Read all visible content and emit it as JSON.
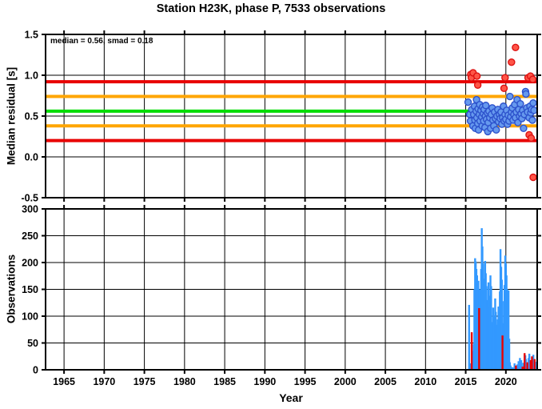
{
  "header": {
    "title": "Station H23K, phase P, 7533 observations"
  },
  "station": {
    "code": "H23K",
    "phase": "P",
    "observation_count": 7533
  },
  "colors": {
    "background": "#ffffff",
    "frame": "#000000",
    "median_line": "#00dd00",
    "smad_line": "#ffa500",
    "smad2_line": "#e80000",
    "inlier_fill": "#6699ee",
    "inlier_edge": "#2d52cc",
    "outlier_fill": "#ff5547",
    "outlier_edge": "#dd1212",
    "bar_blue": "#3399ff",
    "bar_red": "#e80000"
  },
  "chart_data": [
    {
      "type": "scatter",
      "name": "median-residual-panel",
      "title": "Station H23K, phase P, 7533 observations",
      "xlabel": "Year",
      "ylabel": "Median residual [s]",
      "annotation": "median = 0.56, smad = 0.18",
      "stats": {
        "median": 0.56,
        "smad": 0.18
      },
      "xlim": [
        1962.7,
        2023.9
      ],
      "ylim": [
        -0.5,
        1.5
      ],
      "xticks": [
        1965,
        1970,
        1975,
        1980,
        1985,
        1990,
        1995,
        2000,
        2005,
        2010,
        2015,
        2020
      ],
      "yticks": [
        -0.5,
        0.0,
        0.5,
        1.0,
        1.5
      ],
      "grid": true,
      "legend": "none",
      "hlines": [
        {
          "name": "median-minus-2smad-line",
          "y": 0.2,
          "color": "#e80000"
        },
        {
          "name": "median-plus-2smad-line",
          "y": 0.92,
          "color": "#e80000"
        },
        {
          "name": "median-minus-smad-line",
          "y": 0.38,
          "color": "#ffa500"
        },
        {
          "name": "median-plus-smad-line",
          "y": 0.74,
          "color": "#ffa500"
        },
        {
          "name": "median-line",
          "y": 0.56,
          "color": "#00dd00"
        }
      ],
      "series": [
        {
          "name": "residual-inliers",
          "marker": "circle",
          "fill": "#6699ee",
          "edge": "#2d52cc",
          "points": [
            [
              2015.3,
              0.67
            ],
            [
              2015.5,
              0.52
            ],
            [
              2015.6,
              0.44
            ],
            [
              2015.75,
              0.58
            ],
            [
              2015.9,
              0.38
            ],
            [
              2016.0,
              0.52
            ],
            [
              2016.1,
              0.62
            ],
            [
              2016.15,
              0.45
            ],
            [
              2016.2,
              0.35
            ],
            [
              2016.3,
              0.56
            ],
            [
              2016.35,
              0.7
            ],
            [
              2016.4,
              0.48
            ],
            [
              2016.5,
              0.41
            ],
            [
              2016.55,
              0.59
            ],
            [
              2016.6,
              0.33
            ],
            [
              2016.7,
              0.52
            ],
            [
              2016.75,
              0.64
            ],
            [
              2016.8,
              0.44
            ],
            [
              2016.9,
              0.57
            ],
            [
              2017.0,
              0.49
            ],
            [
              2017.05,
              0.38
            ],
            [
              2017.1,
              0.61
            ],
            [
              2017.2,
              0.53
            ],
            [
              2017.25,
              0.44
            ],
            [
              2017.3,
              0.58
            ],
            [
              2017.4,
              0.36
            ],
            [
              2017.45,
              0.5
            ],
            [
              2017.5,
              0.63
            ],
            [
              2017.6,
              0.46
            ],
            [
              2017.7,
              0.54
            ],
            [
              2017.75,
              0.31
            ],
            [
              2017.8,
              0.42
            ],
            [
              2017.9,
              0.56
            ],
            [
              2018.0,
              0.48
            ],
            [
              2018.1,
              0.35
            ],
            [
              2018.2,
              0.52
            ],
            [
              2018.3,
              0.6
            ],
            [
              2018.4,
              0.45
            ],
            [
              2018.5,
              0.38
            ],
            [
              2018.6,
              0.55
            ],
            [
              2018.7,
              0.47
            ],
            [
              2018.8,
              0.33
            ],
            [
              2018.9,
              0.5
            ],
            [
              2019.0,
              0.58
            ],
            [
              2019.1,
              0.43
            ],
            [
              2019.2,
              0.52
            ],
            [
              2019.3,
              0.47
            ],
            [
              2019.4,
              0.55
            ],
            [
              2019.5,
              0.4
            ],
            [
              2019.6,
              0.48
            ],
            [
              2019.7,
              0.62
            ],
            [
              2019.8,
              0.44
            ],
            [
              2019.9,
              0.52
            ],
            [
              2020.0,
              0.46
            ],
            [
              2020.1,
              0.57
            ],
            [
              2020.2,
              0.4
            ],
            [
              2020.3,
              0.51
            ],
            [
              2020.4,
              0.44
            ],
            [
              2020.5,
              0.74
            ],
            [
              2020.6,
              0.49
            ],
            [
              2020.7,
              0.55
            ],
            [
              2020.8,
              0.6
            ],
            [
              2020.9,
              0.45
            ],
            [
              2021.0,
              0.52
            ],
            [
              2021.1,
              0.64
            ],
            [
              2021.2,
              0.48
            ],
            [
              2021.3,
              0.55
            ],
            [
              2021.4,
              0.7
            ],
            [
              2021.5,
              0.42
            ],
            [
              2021.6,
              0.58
            ],
            [
              2021.7,
              0.5
            ],
            [
              2021.8,
              0.65
            ],
            [
              2021.9,
              0.53
            ],
            [
              2022.0,
              0.47
            ],
            [
              2022.1,
              0.57
            ],
            [
              2022.2,
              0.35
            ],
            [
              2022.3,
              0.52
            ],
            [
              2022.45,
              0.8
            ],
            [
              2022.5,
              0.77
            ],
            [
              2022.6,
              0.6
            ],
            [
              2022.7,
              0.55
            ],
            [
              2022.9,
              0.48
            ],
            [
              2023.0,
              0.62
            ],
            [
              2023.1,
              0.54
            ],
            [
              2023.2,
              0.58
            ],
            [
              2023.3,
              0.45
            ],
            [
              2023.4,
              0.66
            ],
            [
              2023.5,
              0.57
            ]
          ]
        },
        {
          "name": "residual-outliers",
          "marker": "circle",
          "fill": "#ff5547",
          "edge": "#dd1212",
          "points": [
            [
              2015.63,
              1.01
            ],
            [
              2015.7,
              0.97
            ],
            [
              2015.92,
              1.03
            ],
            [
              2016.4,
              0.99
            ],
            [
              2016.5,
              0.88
            ],
            [
              2019.77,
              0.84
            ],
            [
              2019.9,
              0.97
            ],
            [
              2020.7,
              1.16
            ],
            [
              2021.2,
              1.34
            ],
            [
              2022.76,
              0.97
            ],
            [
              2023.06,
              0.99
            ],
            [
              2023.35,
              0.95
            ],
            [
              2022.9,
              0.27
            ],
            [
              2023.15,
              0.23
            ],
            [
              2023.4,
              -0.25
            ]
          ]
        }
      ]
    },
    {
      "type": "bar",
      "name": "observations-panel",
      "xlabel": "Year",
      "ylabel": "Observations",
      "xlim": [
        1962.7,
        2023.9
      ],
      "ylim": [
        0,
        300
      ],
      "xticks": [
        1965,
        1970,
        1975,
        1980,
        1985,
        1990,
        1995,
        2000,
        2005,
        2010,
        2015,
        2020
      ],
      "yticks": [
        0,
        50,
        100,
        150,
        200,
        250,
        300
      ],
      "grid": true,
      "bar_width_years": 0.085,
      "series": [
        {
          "name": "observations-per-month",
          "color": "#3399ff",
          "bars": [
            [
              2015.42,
              121
            ],
            [
              2015.58,
              12
            ],
            [
              2015.83,
              35
            ],
            [
              2016.0,
              48
            ],
            [
              2016.08,
              150
            ],
            [
              2016.17,
              208
            ],
            [
              2016.25,
              202
            ],
            [
              2016.33,
              188
            ],
            [
              2016.42,
              176
            ],
            [
              2016.5,
              124
            ],
            [
              2016.58,
              166
            ],
            [
              2016.75,
              150
            ],
            [
              2016.83,
              94
            ],
            [
              2016.92,
              188
            ],
            [
              2017.0,
              264
            ],
            [
              2017.08,
              230
            ],
            [
              2017.17,
              198
            ],
            [
              2017.25,
              170
            ],
            [
              2017.33,
              146
            ],
            [
              2017.42,
              203
            ],
            [
              2017.5,
              180
            ],
            [
              2017.58,
              156
            ],
            [
              2017.67,
              130
            ],
            [
              2017.75,
              94
            ],
            [
              2017.83,
              163
            ],
            [
              2017.92,
              138
            ],
            [
              2018.0,
              117
            ],
            [
              2018.08,
              176
            ],
            [
              2018.17,
              156
            ],
            [
              2018.25,
              89
            ],
            [
              2018.33,
              61
            ],
            [
              2018.42,
              116
            ],
            [
              2018.5,
              100
            ],
            [
              2018.58,
              77
            ],
            [
              2018.67,
              133
            ],
            [
              2018.75,
              108
            ],
            [
              2018.83,
              84
            ],
            [
              2018.92,
              69
            ],
            [
              2019.0,
              94
            ],
            [
              2019.08,
              118
            ],
            [
              2019.17,
              84
            ],
            [
              2019.25,
              146
            ],
            [
              2019.33,
              225
            ],
            [
              2019.42,
              192
            ],
            [
              2019.5,
              168
            ],
            [
              2019.67,
              87
            ],
            [
              2019.75,
              128
            ],
            [
              2019.83,
              158
            ],
            [
              2019.92,
              213
            ],
            [
              2020.0,
              198
            ],
            [
              2020.08,
              176
            ],
            [
              2020.17,
              150
            ],
            [
              2020.25,
              116
            ],
            [
              2020.33,
              148
            ],
            [
              2020.42,
              58
            ],
            [
              2020.5,
              14
            ],
            [
              2020.58,
              8
            ],
            [
              2020.75,
              5
            ],
            [
              2020.92,
              4
            ],
            [
              2021.08,
              12
            ],
            [
              2021.42,
              10
            ],
            [
              2021.58,
              16
            ],
            [
              2021.75,
              22
            ],
            [
              2021.92,
              18
            ],
            [
              2022.17,
              13
            ],
            [
              2022.42,
              27
            ],
            [
              2022.5,
              20
            ],
            [
              2022.83,
              22
            ],
            [
              2022.92,
              30
            ],
            [
              2023.17,
              16
            ],
            [
              2023.42,
              28
            ],
            [
              2023.5,
              12
            ],
            [
              2023.67,
              15
            ]
          ]
        },
        {
          "name": "outlier-observations-per-month",
          "color": "#e80000",
          "bars": [
            [
              2015.75,
              70
            ],
            [
              2016.67,
              115
            ],
            [
              2019.58,
              64
            ],
            [
              2021.25,
              8
            ],
            [
              2022.08,
              6
            ],
            [
              2022.33,
              31
            ],
            [
              2022.67,
              14
            ],
            [
              2023.08,
              18
            ],
            [
              2023.25,
              25
            ],
            [
              2023.58,
              20
            ]
          ]
        }
      ]
    }
  ]
}
